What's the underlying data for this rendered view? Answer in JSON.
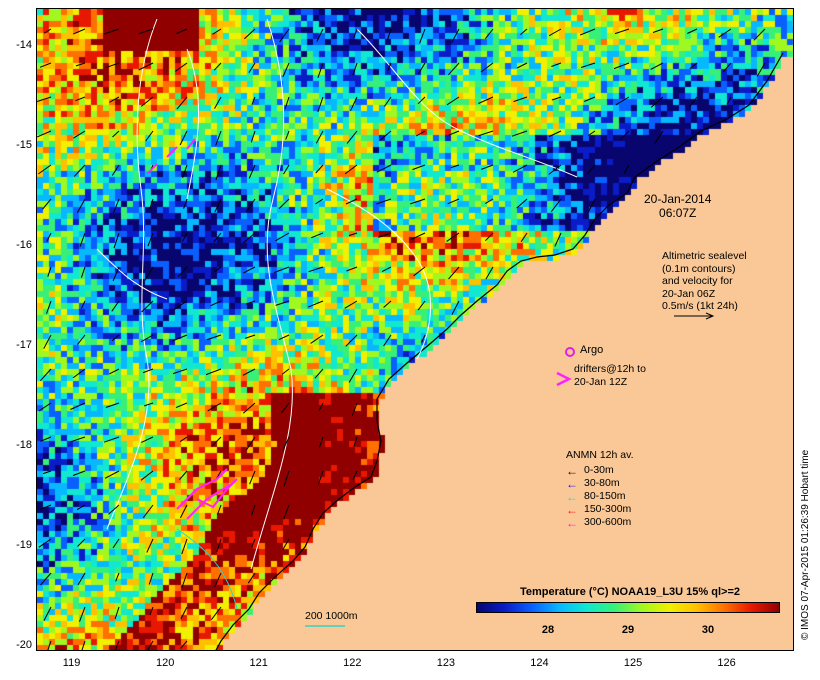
{
  "map": {
    "y_ticks": [
      "-14",
      "-15",
      "-16",
      "-17",
      "-18",
      "-19",
      "-20"
    ],
    "x_ticks": [
      "119",
      "120",
      "121",
      "122",
      "123",
      "124",
      "125",
      "126"
    ],
    "lon_range": [
      118.62,
      126.72
    ],
    "lat_range": [
      -20.05,
      -13.62
    ]
  },
  "date": {
    "line1": "20-Jan-2014",
    "line2": "06:07Z"
  },
  "altimetry": {
    "lines": [
      "Altimetric sealevel",
      "(0.1m contours)",
      "and velocity for",
      "20-Jan 06Z",
      "0.5m/s (1kt 24h)"
    ]
  },
  "argo": {
    "label": "Argo",
    "color": "#e020e0"
  },
  "drifters": {
    "line1": "drifters@12h to",
    "line2": "20-Jan 12Z",
    "color": "#ff22ff"
  },
  "anmn": {
    "title": "ANMN 12h av.",
    "items": [
      {
        "label": "0-30m",
        "color": "#000000"
      },
      {
        "label": "30-80m",
        "color": "#1010ff"
      },
      {
        "label": "80-150m",
        "color": "#18d8e8"
      },
      {
        "label": "150-300m",
        "color": "#ff1010"
      },
      {
        "label": "300-600m",
        "color": "#ff10ff"
      }
    ]
  },
  "scale_label": "200  1000m",
  "colorbar": {
    "title": "Temperature (°C) NOAA19_L3U 15% ql>=2",
    "ticks": [
      "28",
      "29",
      "30"
    ],
    "range": [
      27.1,
      30.9
    ]
  },
  "credit": "© IMOS 07-Apr-2015 01:26:39 Hobart time",
  "colors": {
    "land": "#f9c896",
    "contour": "#ffffff",
    "isobath": "#2dd4c6"
  }
}
